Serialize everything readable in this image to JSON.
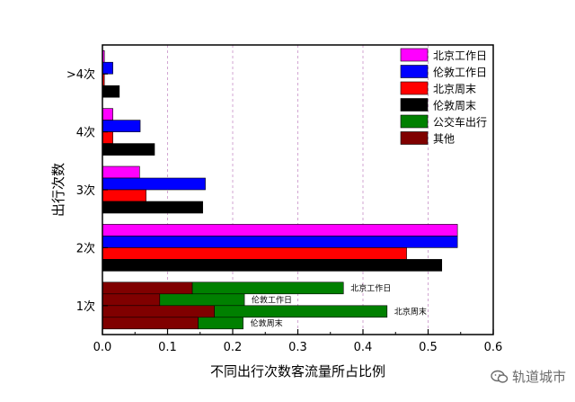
{
  "chart_data": {
    "type": "bar",
    "orientation": "horizontal",
    "title": "",
    "xlabel": "不同出行次数客流量所占比例",
    "ylabel": "出行次数",
    "xlim": [
      0,
      0.6
    ],
    "xticks": [
      "0.0",
      "0.1",
      "0.2",
      "0.3",
      "0.4",
      "0.5",
      "0.6"
    ],
    "grid": "vertical-dashed",
    "legend_position": "top-right",
    "categories": [
      "1次",
      "2次",
      "3次",
      "4次",
      ">4次"
    ],
    "series": [
      {
        "name": "北京工作日",
        "color": "#ff00ff",
        "values": [
          0.37,
          0.545,
          0.057,
          0.016,
          0.003
        ]
      },
      {
        "name": "伦敦工作日",
        "color": "#0000ff",
        "values": [
          0.218,
          0.545,
          0.158,
          0.058,
          0.016
        ]
      },
      {
        "name": "北京周末",
        "color": "#ff0000",
        "values": [
          0.437,
          0.467,
          0.067,
          0.016,
          0.003
        ]
      },
      {
        "name": "伦敦周末",
        "color": "#000000",
        "values": [
          0.216,
          0.521,
          0.154,
          0.08,
          0.026
        ]
      }
    ],
    "breakdown_1ci": {
      "categories": [
        "北京工作日",
        "伦敦工作日",
        "北京周末",
        "伦敦周末"
      ],
      "series": [
        {
          "name": "其他",
          "color": "#800000",
          "values": [
            0.138,
            0.088,
            0.172,
            0.147
          ]
        },
        {
          "name": "公交车出行",
          "color": "#008000",
          "values": [
            0.232,
            0.13,
            0.265,
            0.069
          ]
        }
      ]
    },
    "legend": [
      {
        "name": "北京工作日",
        "color": "#ff00ff"
      },
      {
        "name": "伦敦工作日",
        "color": "#0000ff"
      },
      {
        "name": "北京周末",
        "color": "#ff0000"
      },
      {
        "name": "伦敦周末",
        "color": "#000000"
      },
      {
        "name": "公交车出行",
        "color": "#008000"
      },
      {
        "name": "其他",
        "color": "#800000"
      }
    ]
  },
  "watermark": {
    "icon": "wechat-icon",
    "text": "轨道城市"
  }
}
